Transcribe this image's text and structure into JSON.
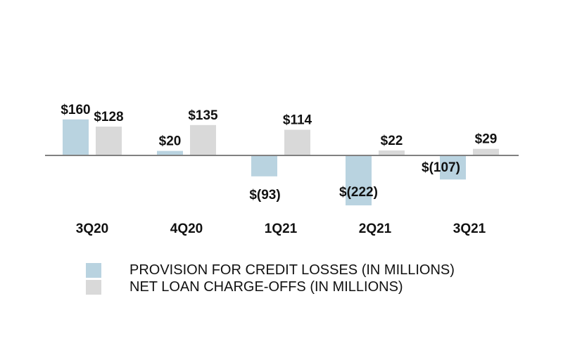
{
  "chart_data": {
    "type": "bar",
    "categories": [
      "3Q20",
      "4Q20",
      "1Q21",
      "2Q21",
      "3Q21"
    ],
    "series": [
      {
        "name": "PROVISION FOR CREDIT LOSSES (IN MILLIONS)",
        "values": [
          160,
          20,
          -93,
          -222,
          -107
        ],
        "labels": [
          "$160",
          "$20",
          "$(93)",
          "$(222)",
          "$(107)"
        ],
        "color": "#b9d3e0"
      },
      {
        "name": "NET LOAN CHARGE-OFFS (IN MILLIONS)",
        "values": [
          128,
          135,
          114,
          22,
          29
        ],
        "labels": [
          "$128",
          "$135",
          "$114",
          "$22",
          "$29"
        ],
        "color": "#d9d9d9"
      }
    ],
    "ylim": [
      -250,
      450
    ],
    "grid": false,
    "zero_line_color": "#808080",
    "legend_position": "bottom"
  }
}
